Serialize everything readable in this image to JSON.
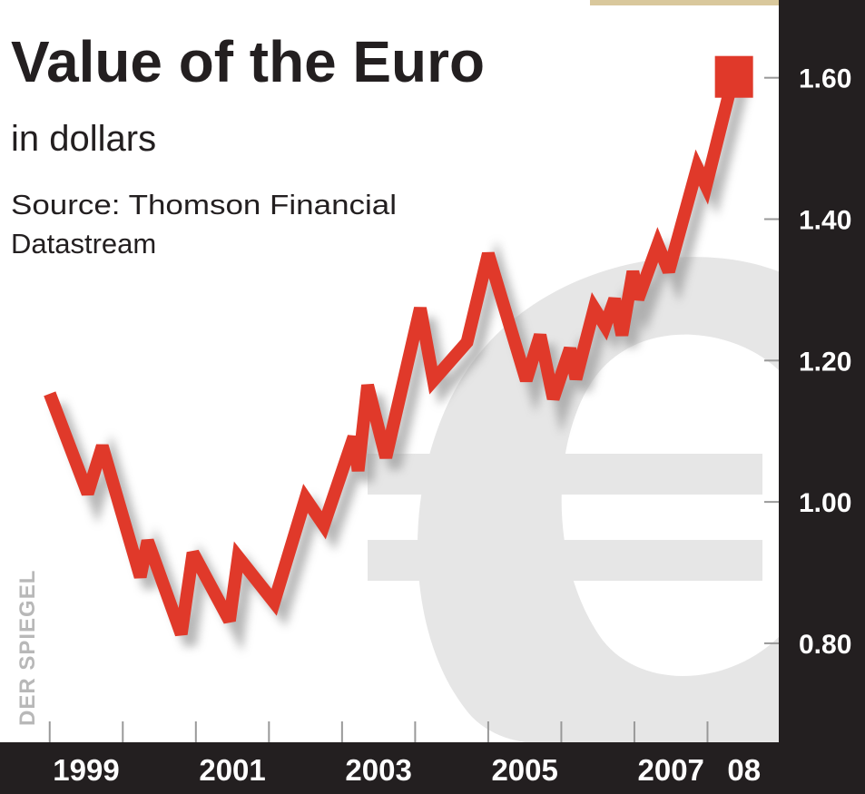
{
  "chart_data": {
    "type": "line",
    "title": "Value of the Euro",
    "subtitle": "in dollars",
    "source": [
      "Source: Thomson Financial",
      "Datastream"
    ],
    "credit": "DER SPIEGEL",
    "x": [
      1999.0,
      1999.52,
      1999.72,
      2000.24,
      2000.34,
      2000.8,
      2000.96,
      2001.46,
      2001.58,
      2002.07,
      2002.5,
      2002.75,
      2003.16,
      2003.22,
      2003.35,
      2003.6,
      2004.07,
      2004.25,
      2004.71,
      2005.0,
      2005.52,
      2005.71,
      2005.89,
      2006.12,
      2006.2,
      2006.45,
      2006.6,
      2006.73,
      2006.83,
      2006.98,
      2007.05,
      2007.32,
      2007.47,
      2007.86,
      2007.98,
      2008.35
    ],
    "series": [
      {
        "color": "#e0392a",
        "values": [
          1.153,
          1.012,
          1.079,
          0.894,
          0.945,
          0.813,
          0.928,
          0.832,
          0.922,
          0.858,
          1.005,
          0.967,
          1.092,
          1.044,
          1.165,
          1.063,
          1.274,
          1.172,
          1.226,
          1.351,
          1.172,
          1.236,
          1.146,
          1.217,
          1.174,
          1.274,
          1.249,
          1.287,
          1.236,
          1.326,
          1.287,
          1.364,
          1.326,
          1.473,
          1.447,
          1.6
        ]
      }
    ],
    "xlim": [
      1998.32,
      2009.0
    ],
    "xticks": [
      1999,
      2000,
      2001,
      2002,
      2003,
      2004,
      2005,
      2006,
      2007,
      2008
    ],
    "x_labels": [
      {
        "value": 1999.5,
        "label": "1999"
      },
      {
        "value": 2001.5,
        "label": "2001"
      },
      {
        "value": 2003.5,
        "label": "2003"
      },
      {
        "value": 2005.5,
        "label": "2005"
      },
      {
        "value": 2007.5,
        "label": "2007"
      },
      {
        "value": 2008.5,
        "label": "08"
      }
    ],
    "ylim": [
      0.66,
      1.71
    ],
    "yticks": [
      {
        "value": 0.8,
        "label": "0.80"
      },
      {
        "value": 1.0,
        "label": "1.00"
      },
      {
        "value": 1.2,
        "label": "1.20"
      },
      {
        "value": 1.4,
        "label": "1.40"
      },
      {
        "value": 1.6,
        "label": "1.60"
      }
    ],
    "end_marker": "square"
  }
}
